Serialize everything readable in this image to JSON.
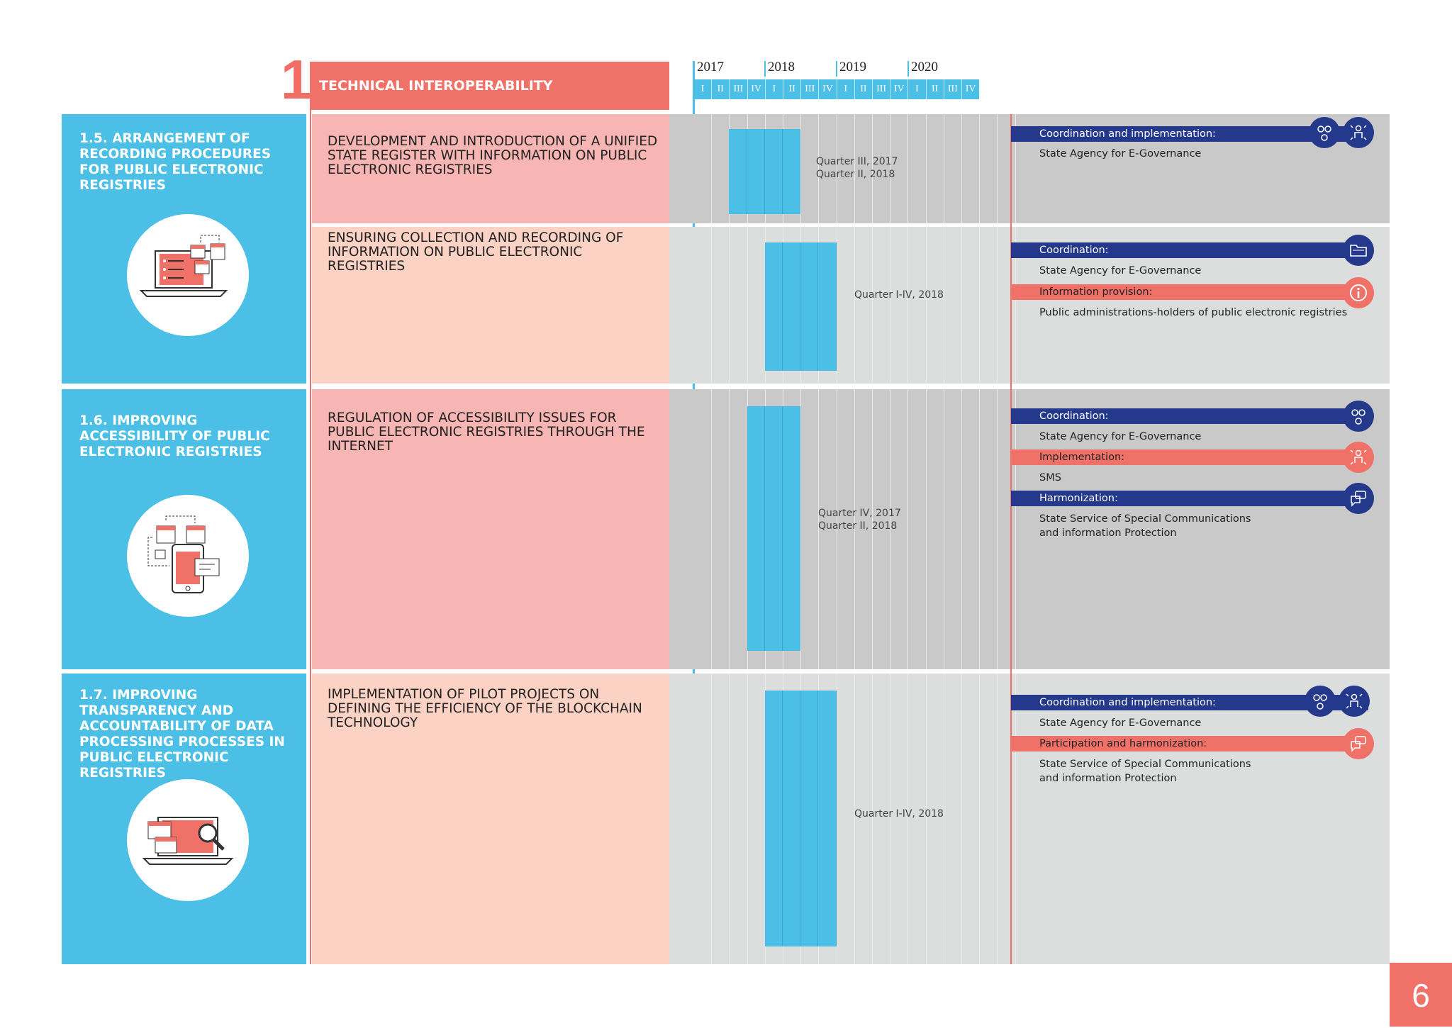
{
  "header": {
    "section_number": "1",
    "section_title": "TECHNICAL INTEROPERABILITY"
  },
  "timeline": {
    "years": [
      "2017",
      "2018",
      "2019",
      "2020"
    ],
    "quarters": [
      "I",
      "II",
      "III",
      "IV"
    ]
  },
  "sections": [
    {
      "title": "1.5. ARRANGEMENT OF RECORDING PROCEDURES FOR PUBLIC ELECTRONIC REGISTRIES",
      "icon": "laptop-registry-icon",
      "tasks": [
        {
          "text": "DEVELOPMENT AND INTRODUCTION OF A UNIFIED STATE REGISTER WITH INFORMATION ON PUBLIC ELECTRONIC REGISTRIES",
          "period_line1": "Quarter III, 2017",
          "period_line2": "Quarter II, 2018",
          "responsibilities": [
            {
              "role": "Coordination and implementation:",
              "who": "State Agency for E-Governance",
              "color": "navy",
              "icon": "coordination-implementation-icon"
            }
          ]
        },
        {
          "text": "ENSURING COLLECTION AND RECORDING OF INFORMATION ON PUBLIC ELECTRONIC REGISTRIES",
          "period_line1": "Quarter I-IV, 2018",
          "responsibilities": [
            {
              "role": "Coordination:",
              "who": "State Agency for E-Governance",
              "color": "navy",
              "icon": "folder-icon"
            },
            {
              "role": "Information provision:",
              "who": "Public administrations-holders of public electronic registries",
              "color": "coral",
              "icon": "info-icon"
            }
          ]
        }
      ]
    },
    {
      "title": "1.6. IMPROVING ACCESSIBILITY OF PUBLIC ELECTRONIC REGISTRIES",
      "icon": "mobile-registry-icon",
      "tasks": [
        {
          "text": "REGULATION OF ACCESSIBILITY ISSUES FOR PUBLIC ELECTRONIC REGISTRIES THROUGH THE INTERNET",
          "period_line1": "Quarter IV, 2017",
          "period_line2": "Quarter II, 2018",
          "responsibilities": [
            {
              "role": "Coordination:",
              "who": "State Agency for E-Governance",
              "color": "navy",
              "icon": "group-icon"
            },
            {
              "role": "Implementation:",
              "who": "SMS",
              "color": "coral",
              "icon": "person-arrows-icon"
            },
            {
              "role": "Harmonization:",
              "who_line1": "State Service of Special Communications",
              "who_line2": "and information Protection",
              "color": "navy",
              "icon": "chat-icon"
            }
          ]
        }
      ]
    },
    {
      "title": "1.7. IMPROVING TRANSPARENCY AND ACCOUNTABILITY OF DATA PROCESSING PROCESSES IN PUBLIC ELECTRONIC REGISTRIES",
      "icon": "laptop-search-icon",
      "tasks": [
        {
          "text": "IMPLEMENTATION OF PILOT PROJECTS ON DEFINING THE EFFICIENCY OF THE BLOCKCHAIN TECHNOLOGY",
          "period_line1": "Quarter I-IV, 2018",
          "responsibilities": [
            {
              "role": "Coordination and implementation:",
              "who": "State Agency for E-Governance",
              "color": "navy",
              "icon": "coordination-implementation-icon"
            },
            {
              "role": "Participation and harmonization:",
              "who_line1": "State Service of Special Communications",
              "who_line2": "and information Protection",
              "color": "coral",
              "icon": "chat-icon"
            }
          ]
        }
      ]
    }
  ],
  "page_number": "6",
  "colors": {
    "accent": "#f07167",
    "blue": "#4bbfe6",
    "navy": "#24398c"
  }
}
